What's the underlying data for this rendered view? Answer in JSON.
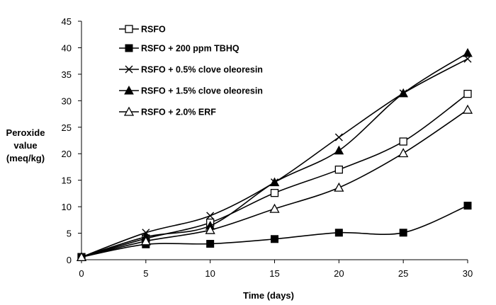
{
  "chart_data": {
    "type": "line",
    "xlabel": "Time (days)",
    "ylabel": [
      "Peroxide",
      "value",
      "(meq/kg)"
    ],
    "x": [
      0,
      5,
      10,
      15,
      20,
      25,
      30
    ],
    "xlim": [
      0,
      30
    ],
    "ylim": [
      0,
      45
    ],
    "xticks": [
      "0",
      "5",
      "10",
      "15",
      "20",
      "25",
      "30"
    ],
    "yticks": [
      "0",
      "5",
      "10",
      "15",
      "20",
      "25",
      "30",
      "35",
      "40",
      "45"
    ],
    "grid": false,
    "legend_position": "top-left",
    "series": [
      {
        "name": "RSFO",
        "marker": "square-open",
        "values": [
          0.5,
          4.0,
          7.0,
          12.6,
          17.0,
          22.3,
          31.3
        ]
      },
      {
        "name": "RSFO + 200 ppm TBHQ",
        "marker": "square-filled",
        "values": [
          0.5,
          2.9,
          3.0,
          3.9,
          5.1,
          5.1,
          10.2
        ]
      },
      {
        "name": "RSFO + 0.5% clove oleoresin",
        "marker": "cross",
        "values": [
          0.5,
          5.1,
          8.3,
          14.6,
          23.1,
          31.4,
          37.9
        ]
      },
      {
        "name": "RSFO + 1.5% clove oleoresin",
        "marker": "triangle-filled",
        "values": [
          0.5,
          4.3,
          6.4,
          14.6,
          20.6,
          31.4,
          39.0
        ]
      },
      {
        "name": "RSFO + 2.0% ERF",
        "marker": "triangle-open",
        "values": [
          0.5,
          3.5,
          5.6,
          9.6,
          13.6,
          20.1,
          28.3
        ]
      }
    ]
  }
}
